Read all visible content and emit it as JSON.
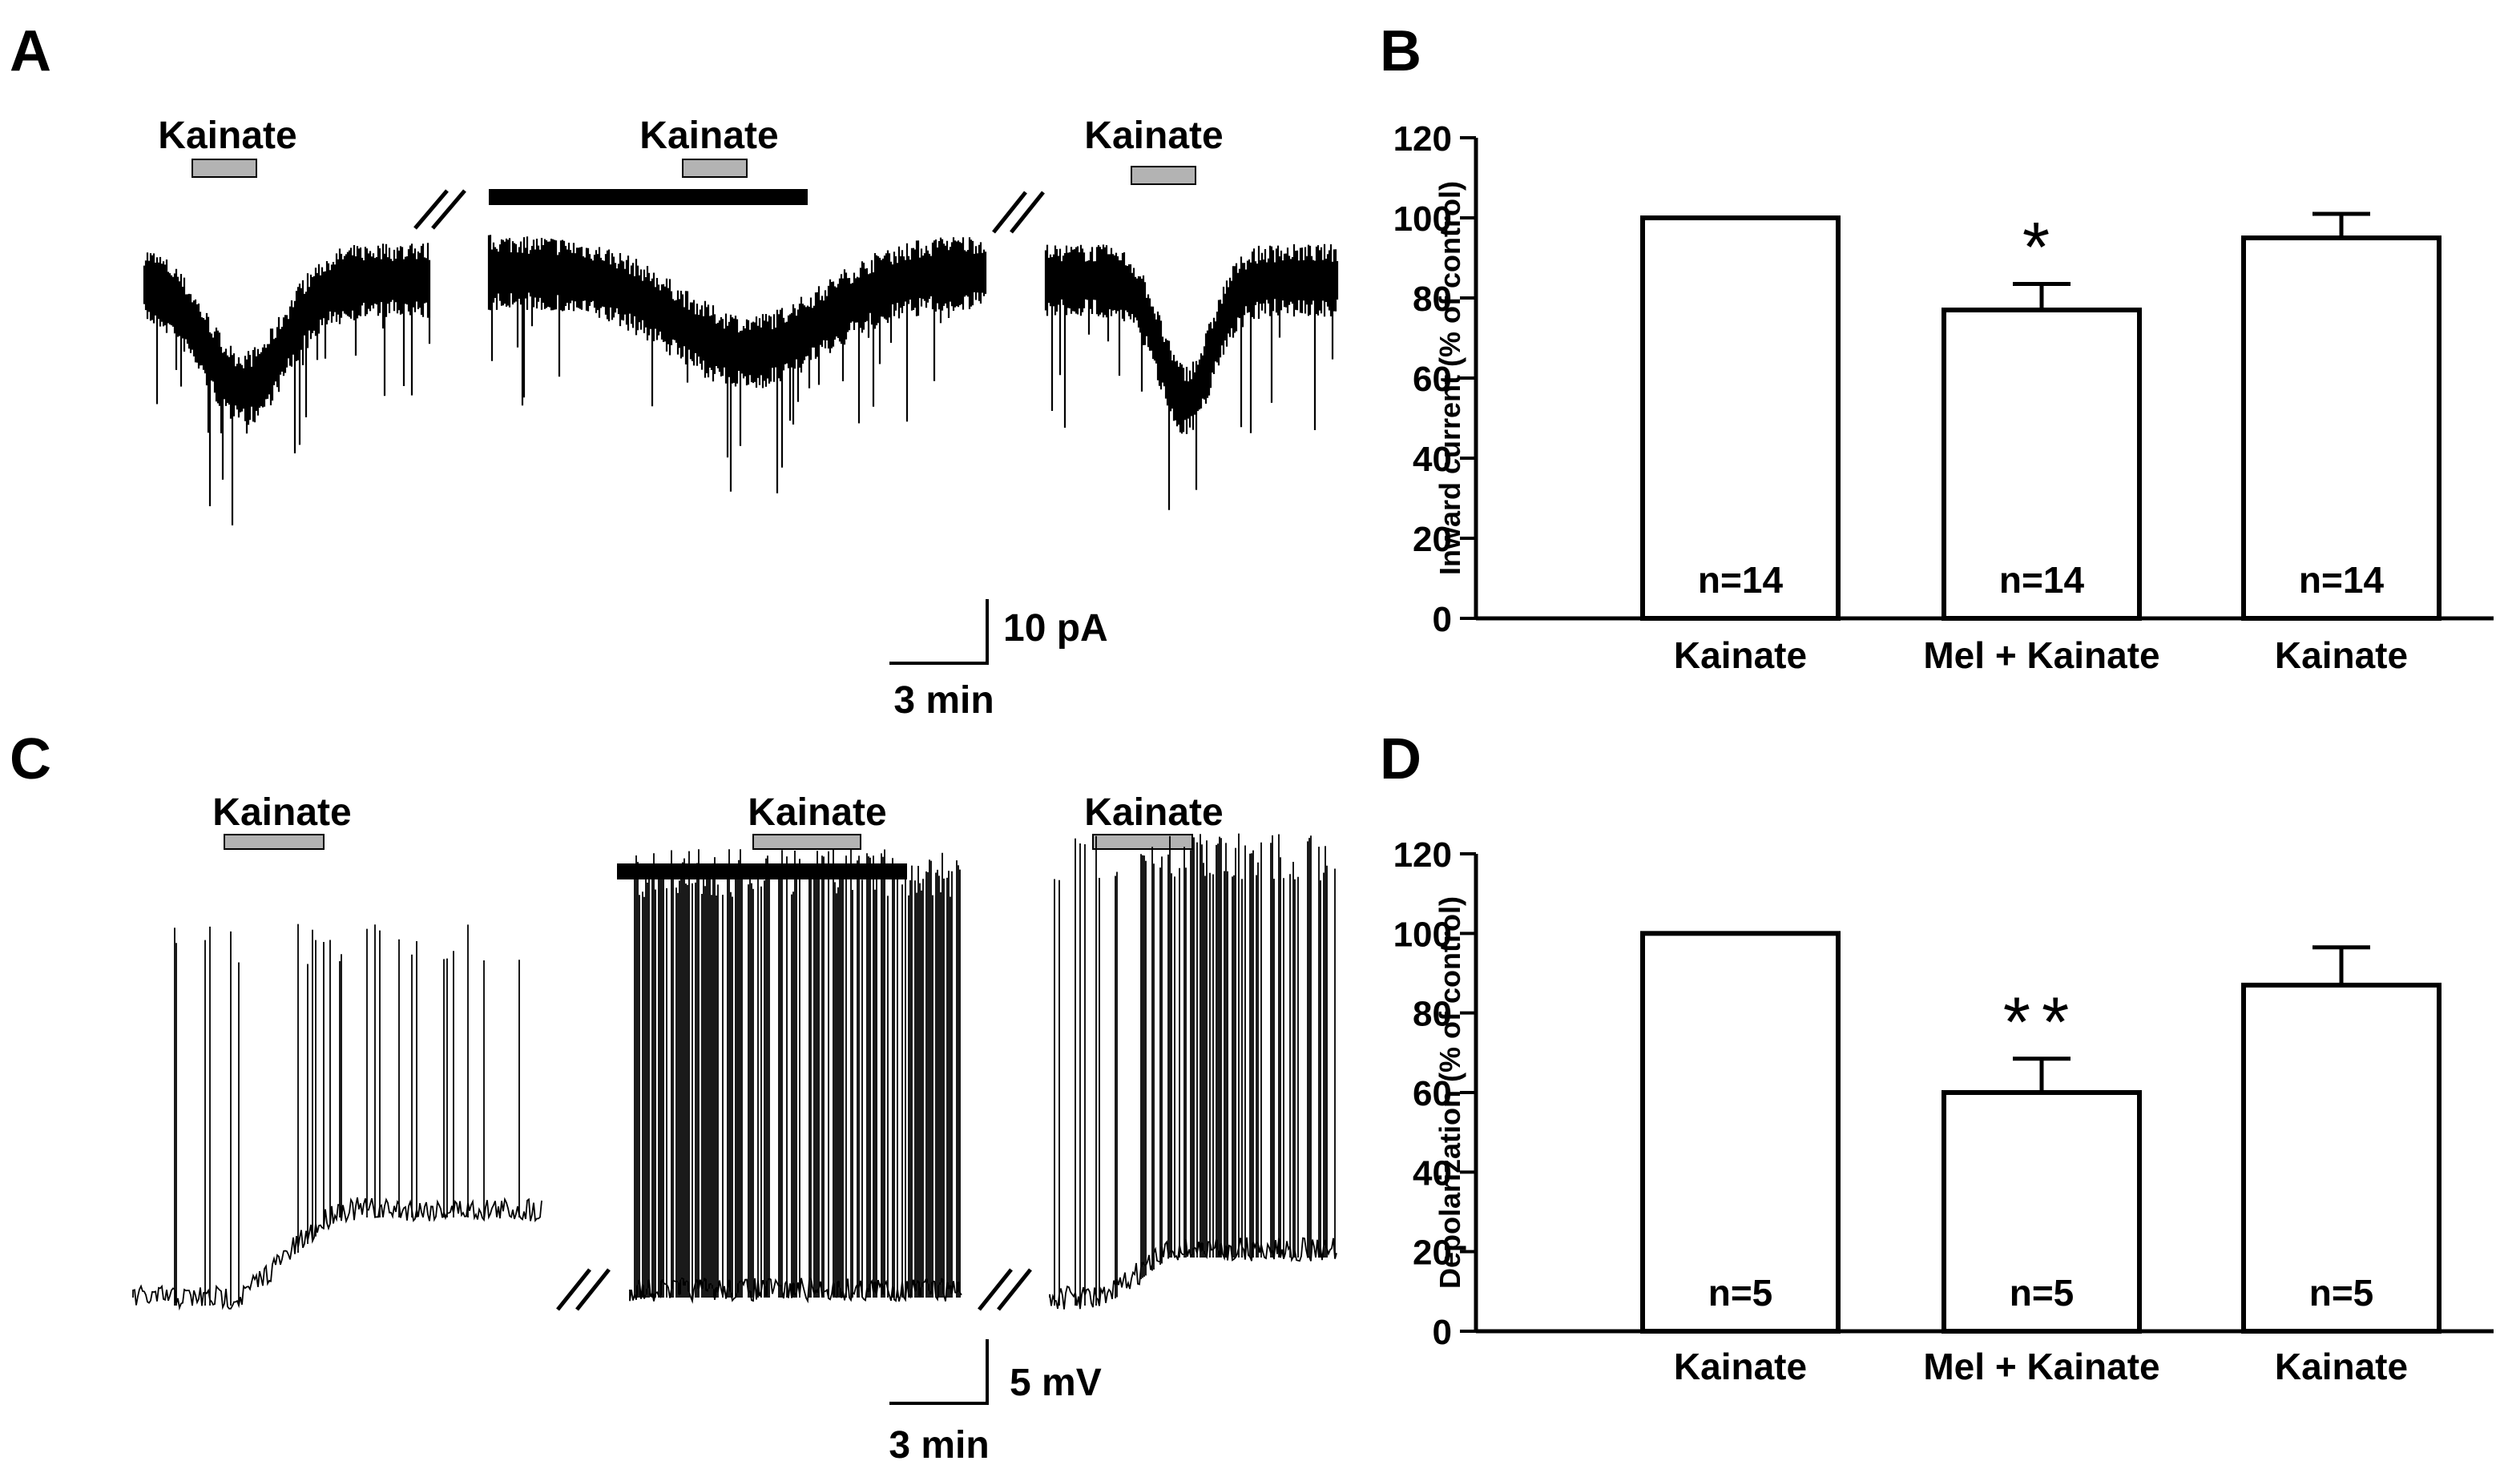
{
  "panels": {
    "A": {
      "letter": "A",
      "segments": [
        {
          "drug_label": "Kainate",
          "drug_bar_color": "#b3b3b3",
          "pretreatment": false
        },
        {
          "drug_label": "Kainate",
          "drug_bar_color": "#b3b3b3",
          "pretreatment": true,
          "pretreatment_bar_color": "#000000"
        },
        {
          "drug_label": "Kainate",
          "drug_bar_color": "#b3b3b3",
          "pretreatment": false
        }
      ],
      "scalebar": {
        "vertical_label": "10 pA",
        "horizontal_label": "3 min"
      }
    },
    "C": {
      "letter": "C",
      "segments": [
        {
          "drug_label": "Kainate",
          "drug_bar_color": "#b3b3b3",
          "pretreatment": false
        },
        {
          "drug_label": "Kainate",
          "drug_bar_color": "#b3b3b3",
          "pretreatment": true,
          "pretreatment_bar_color": "#000000"
        },
        {
          "drug_label": "Kainate",
          "drug_bar_color": "#b3b3b3",
          "pretreatment": false
        }
      ],
      "scalebar": {
        "vertical_label": "5 mV",
        "horizontal_label": "3 min"
      }
    }
  },
  "chart_data": [
    {
      "panel": "B",
      "type": "bar",
      "categories": [
        "Kainate",
        "Mel + Kainate",
        "Kainate"
      ],
      "values": [
        100,
        77,
        95
      ],
      "errors": [
        0,
        6.5,
        6
      ],
      "bar_labels": [
        "n=14",
        "n=14",
        "n=14"
      ],
      "significance": [
        "",
        "*",
        ""
      ],
      "title": "",
      "xlabel": "",
      "ylabel": "Inward current (% of control)",
      "ylim": [
        0,
        120
      ],
      "yticks": [
        0,
        20,
        40,
        60,
        80,
        100,
        120
      ],
      "grid": false,
      "bar_fill": "#ffffff",
      "bar_stroke": "#000000"
    },
    {
      "panel": "D",
      "type": "bar",
      "categories": [
        "Kainate",
        "Mel + Kainate",
        "Kainate"
      ],
      "values": [
        100,
        60,
        87
      ],
      "errors": [
        0,
        8.5,
        9.5
      ],
      "bar_labels": [
        "n=5",
        "n=5",
        "n=5"
      ],
      "significance": [
        "",
        "**",
        ""
      ],
      "title": "",
      "xlabel": "",
      "ylabel": "Depolarization (% of control)",
      "ylim": [
        0,
        120
      ],
      "yticks": [
        0,
        20,
        40,
        60,
        80,
        100,
        120
      ],
      "grid": false,
      "bar_fill": "#ffffff",
      "bar_stroke": "#000000"
    }
  ]
}
